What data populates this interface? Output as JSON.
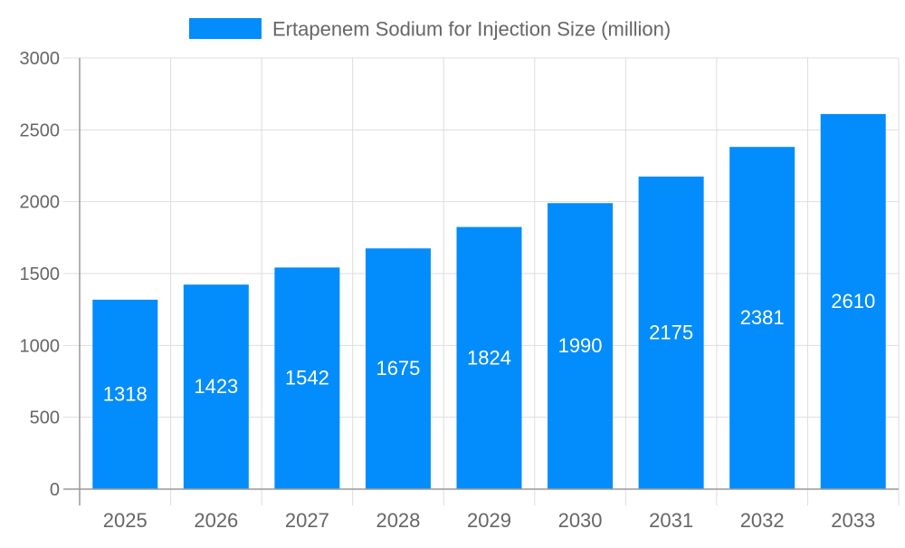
{
  "chart_data": {
    "type": "bar",
    "title": "",
    "xlabel": "",
    "ylabel": "",
    "categories": [
      "2025",
      "2026",
      "2027",
      "2028",
      "2029",
      "2030",
      "2031",
      "2032",
      "2033"
    ],
    "series": [
      {
        "name": "Ertapenem Sodium for Injection Size (million)",
        "values": [
          1318,
          1423,
          1542,
          1675,
          1824,
          1990,
          2175,
          2381,
          2610
        ]
      }
    ],
    "ylim": [
      0,
      3000
    ],
    "yticks": [
      "0",
      "500",
      "1000",
      "1500",
      "2000",
      "2500",
      "3000"
    ],
    "grid": true,
    "legend": "top",
    "data_labels": true,
    "colors": {
      "bar": "#038cfc",
      "label": "#ffffff",
      "tick_text": "#666666",
      "grid": "#dddddd"
    }
  }
}
